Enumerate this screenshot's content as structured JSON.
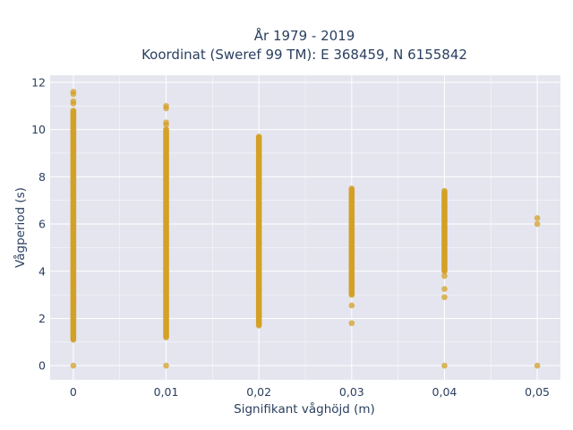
{
  "chart_data": {
    "type": "scatter",
    "title_line1": "År 1979 - 2019",
    "title_line2": "Koordinat (Sweref 99 TM): E 368459, N 6155842",
    "xlabel": "Signifikant våghöjd (m)",
    "ylabel": "Vågperiod (s)",
    "xlim": [
      -0.0025,
      0.0525
    ],
    "ylim": [
      -0.6,
      12.3
    ],
    "x_ticks": [
      0,
      0.01,
      0.02,
      0.03,
      0.04,
      0.05
    ],
    "x_tick_labels": [
      "0",
      "0,01",
      "0,02",
      "0,03",
      "0,04",
      "0,05"
    ],
    "y_ticks": [
      0,
      2,
      4,
      6,
      8,
      10,
      12
    ],
    "y_tick_labels": [
      "0",
      "2",
      "4",
      "6",
      "8",
      "10",
      "12"
    ],
    "grid": true,
    "marker_color": "#d4a026",
    "background_color": "#e5e5ef",
    "series": [
      {
        "x": 0,
        "dense_ranges": [
          [
            1.1,
            10.8
          ]
        ],
        "points": [
          0,
          11.1,
          11.2,
          11.5,
          11.6
        ]
      },
      {
        "x": 0.01,
        "dense_ranges": [
          [
            1.2,
            10.0
          ]
        ],
        "points": [
          0,
          10.2,
          10.3,
          10.9,
          11.0
        ]
      },
      {
        "x": 0.02,
        "dense_ranges": [
          [
            1.7,
            9.7
          ]
        ],
        "points": []
      },
      {
        "x": 0.03,
        "dense_ranges": [
          [
            3.0,
            7.5
          ]
        ],
        "points": [
          1.8,
          2.55
        ]
      },
      {
        "x": 0.04,
        "dense_ranges": [
          [
            4.0,
            7.4
          ]
        ],
        "points": [
          0,
          2.9,
          3.25,
          3.8
        ]
      },
      {
        "x": 0.05,
        "dense_ranges": [],
        "points": [
          0,
          6.0,
          6.25
        ]
      }
    ]
  }
}
